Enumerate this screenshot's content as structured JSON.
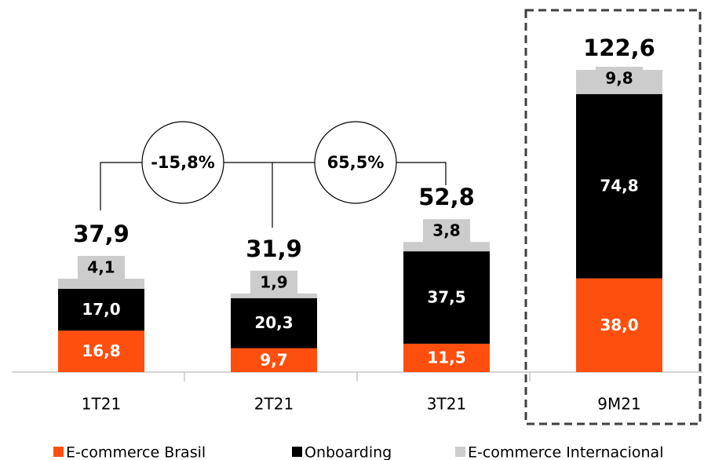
{
  "chart_data": {
    "type": "stacked_bar",
    "categories": [
      "1T21",
      "2T21",
      "3T21",
      "9M21"
    ],
    "series": [
      {
        "name": "E-commerce Brasil",
        "color": "#ff4f0f",
        "values": [
          16.8,
          9.7,
          11.5,
          38.0
        ],
        "value_labels": [
          "16,8",
          "9,7",
          "11,5",
          "38,0"
        ]
      },
      {
        "name": "Onboarding",
        "color": "#000000",
        "values": [
          17.0,
          20.3,
          37.5,
          74.8
        ],
        "value_labels": [
          "17,0",
          "20,3",
          "37,5",
          "74,8"
        ]
      },
      {
        "name": "E-commerce Internacional",
        "color": "#cccccc",
        "values": [
          4.1,
          1.9,
          3.8,
          9.8
        ],
        "value_labels": [
          "4,1",
          "1,9",
          "3,8",
          "9,8"
        ]
      }
    ],
    "total_labels": [
      "37,9",
      "31,9",
      "52,8",
      "122,6"
    ],
    "growth_labels": [
      "-15,8%",
      "65,5%"
    ]
  }
}
